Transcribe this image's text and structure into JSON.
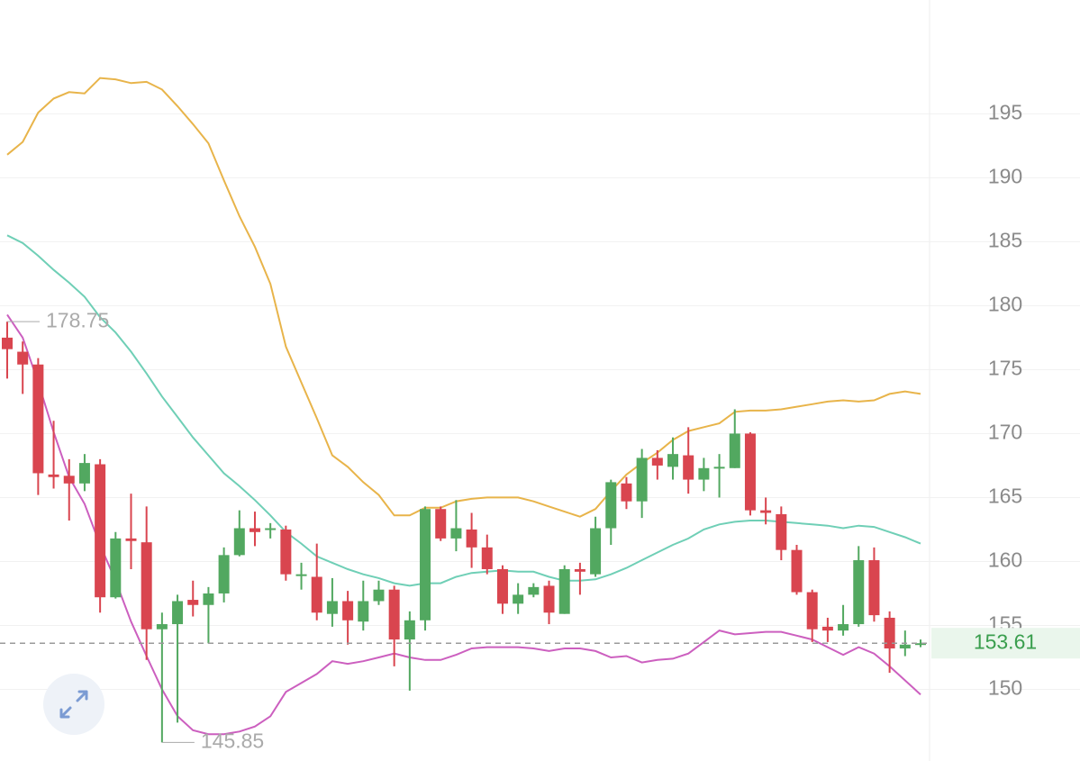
{
  "chart_data": {
    "type": "candlestick",
    "open": [
      177.5,
      176.4,
      175.4,
      166.8,
      166.7,
      166.1,
      167.6,
      157.2,
      161.8,
      161.5,
      154.7,
      155.1,
      157.0,
      156.6,
      157.5,
      160.5,
      162.6,
      162.5,
      162.5,
      158.9,
      158.8,
      155.9,
      156.9,
      155.3,
      156.9,
      157.8,
      153.9,
      155.4,
      164.1,
      161.8,
      162.5,
      161.1,
      159.4,
      156.7,
      157.4,
      158.1,
      155.9,
      159.4,
      159.0,
      162.6,
      166.1,
      164.7,
      168.1,
      167.4,
      168.3,
      166.4,
      167.3,
      167.3,
      170.0,
      164.0,
      163.7,
      160.9,
      157.6,
      154.9,
      154.6,
      155.1,
      160.1,
      155.6,
      153.2,
      153.5
    ],
    "high": [
      178.75,
      177.2,
      175.9,
      171.0,
      168.0,
      168.4,
      168.0,
      162.3,
      165.3,
      164.3,
      156.0,
      157.4,
      158.5,
      158.0,
      161.1,
      164.0,
      163.9,
      163.0,
      162.8,
      159.9,
      161.4,
      158.7,
      157.7,
      158.5,
      158.5,
      158.1,
      156.1,
      164.3,
      164.3,
      164.8,
      163.8,
      162.1,
      159.7,
      158.3,
      158.3,
      158.5,
      159.7,
      159.9,
      163.5,
      166.4,
      166.6,
      168.8,
      168.7,
      169.7,
      170.5,
      168.1,
      168.4,
      171.9,
      170.1,
      165.0,
      164.3,
      161.3,
      157.8,
      155.6,
      156.6,
      161.2,
      161.1,
      156.1,
      154.6,
      153.9
    ],
    "low": [
      174.3,
      173.1,
      165.2,
      165.7,
      163.2,
      165.5,
      156.0,
      157.1,
      159.4,
      152.3,
      145.85,
      147.4,
      155.7,
      153.6,
      156.8,
      160.4,
      161.2,
      161.8,
      158.5,
      157.8,
      155.4,
      154.9,
      153.5,
      154.6,
      156.6,
      151.8,
      149.9,
      154.6,
      161.6,
      160.8,
      159.5,
      159.0,
      155.9,
      155.9,
      157.2,
      155.1,
      155.9,
      157.4,
      158.8,
      161.3,
      164.1,
      163.4,
      166.4,
      166.4,
      165.3,
      165.5,
      165.0,
      167.3,
      163.6,
      162.9,
      160.1,
      157.4,
      153.7,
      153.7,
      154.2,
      154.9,
      155.3,
      151.3,
      152.6,
      153.3
    ],
    "close": [
      176.6,
      175.4,
      166.9,
      166.6,
      166.1,
      167.7,
      157.2,
      161.8,
      161.6,
      154.7,
      155.1,
      156.9,
      156.6,
      157.5,
      160.5,
      162.6,
      162.3,
      162.6,
      159.0,
      159.0,
      156.0,
      156.9,
      155.4,
      156.9,
      157.8,
      153.9,
      155.4,
      164.1,
      161.8,
      162.6,
      161.1,
      159.4,
      156.7,
      157.4,
      158.0,
      156.0,
      159.4,
      159.2,
      162.6,
      166.2,
      164.7,
      168.1,
      167.5,
      168.4,
      166.4,
      167.3,
      167.4,
      170.0,
      164.0,
      163.8,
      160.9,
      157.6,
      154.7,
      154.6,
      155.1,
      160.1,
      155.8,
      153.2,
      153.5,
      153.61
    ],
    "up_color": "#52a860",
    "down_color": "#d9454f",
    "overlays": [
      {
        "color": "#e8b44a",
        "values": [
          191.8,
          192.8,
          195.1,
          196.2,
          196.7,
          196.6,
          197.8,
          197.7,
          197.4,
          197.5,
          196.9,
          195.6,
          194.2,
          192.7,
          189.8,
          187.0,
          184.6,
          181.7,
          176.8,
          174.0,
          171.2,
          168.3,
          167.4,
          166.2,
          165.2,
          163.6,
          163.6,
          164.2,
          164.2,
          164.7,
          164.9,
          165.0,
          165.0,
          165.0,
          164.7,
          164.3,
          163.9,
          163.5,
          164.1,
          165.5,
          166.8,
          167.7,
          168.5,
          169.5,
          170.2,
          170.5,
          170.8,
          171.7,
          171.8,
          171.8,
          171.9,
          172.1,
          172.3,
          172.5,
          172.6,
          172.5,
          172.6,
          173.1,
          173.3,
          173.1
        ]
      },
      {
        "color": "#6fcfb6",
        "values": [
          185.5,
          184.9,
          183.9,
          182.8,
          181.8,
          180.7,
          179.1,
          177.9,
          176.4,
          174.7,
          172.9,
          171.3,
          169.7,
          168.3,
          166.9,
          165.9,
          164.8,
          163.6,
          162.3,
          161.4,
          160.4,
          159.9,
          159.4,
          159.0,
          158.7,
          158.3,
          158.1,
          158.3,
          158.3,
          158.8,
          159.1,
          159.2,
          159.3,
          159.2,
          159.2,
          158.8,
          158.5,
          158.5,
          158.6,
          159.0,
          159.5,
          160.1,
          160.7,
          161.3,
          161.8,
          162.5,
          162.9,
          163.1,
          163.2,
          163.2,
          163.1,
          163.0,
          162.9,
          162.8,
          162.6,
          162.8,
          162.7,
          162.3,
          161.9,
          161.4
        ]
      },
      {
        "color": "#cc5fbf",
        "values": [
          179.3,
          177.5,
          174.0,
          170.1,
          166.6,
          164.5,
          161.3,
          158.5,
          155.3,
          152.6,
          150.0,
          147.9,
          146.8,
          146.5,
          146.5,
          146.7,
          147.1,
          147.9,
          149.8,
          150.5,
          151.2,
          152.2,
          152.0,
          152.2,
          152.5,
          152.8,
          152.5,
          152.3,
          152.3,
          152.7,
          153.2,
          153.3,
          153.3,
          153.3,
          153.2,
          153.0,
          153.2,
          153.2,
          153.0,
          152.5,
          152.6,
          152.1,
          152.3,
          152.4,
          152.8,
          153.7,
          154.6,
          154.3,
          154.4,
          154.5,
          154.5,
          154.2,
          153.9,
          153.3,
          152.7,
          153.3,
          152.8,
          151.8,
          150.7,
          149.6
        ]
      }
    ],
    "high_label": 178.75,
    "low_label": 145.85,
    "last_price": 153.61,
    "last_price_color": "#3a9e4e",
    "ylim": [
      144.4,
      203.9
    ],
    "yticks": [
      150,
      155,
      160,
      165,
      170,
      175,
      180,
      185,
      190,
      195
    ],
    "grid": true
  }
}
